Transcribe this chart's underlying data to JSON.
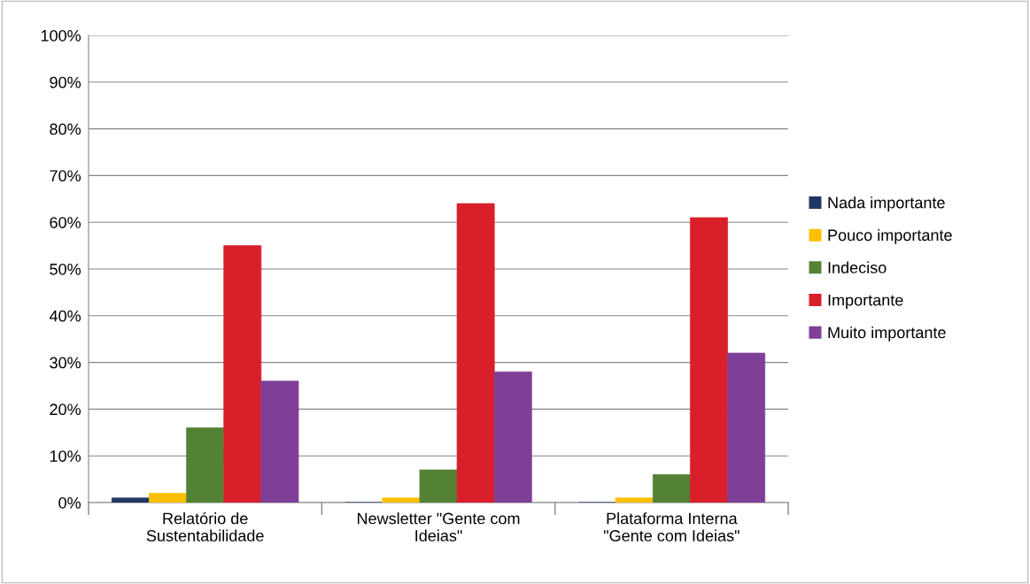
{
  "chart_data": {
    "type": "bar",
    "categories": [
      "Relatório de\nSustentabilidade",
      "Newsletter \"Gente com\nIdeias\"",
      "Plataforma Interna\n\"Gente com Ideias\""
    ],
    "series": [
      {
        "name": "Nada importante",
        "color": "#203864",
        "values": [
          1,
          0,
          0
        ]
      },
      {
        "name": "Pouco importante",
        "color": "#ffc000",
        "values": [
          2,
          1,
          1
        ]
      },
      {
        "name": "Indeciso",
        "color": "#548235",
        "values": [
          16,
          7,
          6
        ]
      },
      {
        "name": "Importante",
        "color": "#d9202a",
        "values": [
          55,
          64,
          61
        ]
      },
      {
        "name": "Muito importante",
        "color": "#7f3f98",
        "values": [
          26,
          28,
          32
        ]
      }
    ],
    "ylim": [
      0,
      100
    ],
    "yticks": [
      {
        "value": 0,
        "label": "0%"
      },
      {
        "value": 10,
        "label": "10%"
      },
      {
        "value": 20,
        "label": "20%"
      },
      {
        "value": 30,
        "label": "30%"
      },
      {
        "value": 40,
        "label": "40%"
      },
      {
        "value": 50,
        "label": "50%"
      },
      {
        "value": 60,
        "label": "60%"
      },
      {
        "value": 70,
        "label": "70%"
      },
      {
        "value": 80,
        "label": "80%"
      },
      {
        "value": 90,
        "label": "90%"
      },
      {
        "value": 100,
        "label": "100%"
      }
    ],
    "grid": "y",
    "legend": "right"
  }
}
